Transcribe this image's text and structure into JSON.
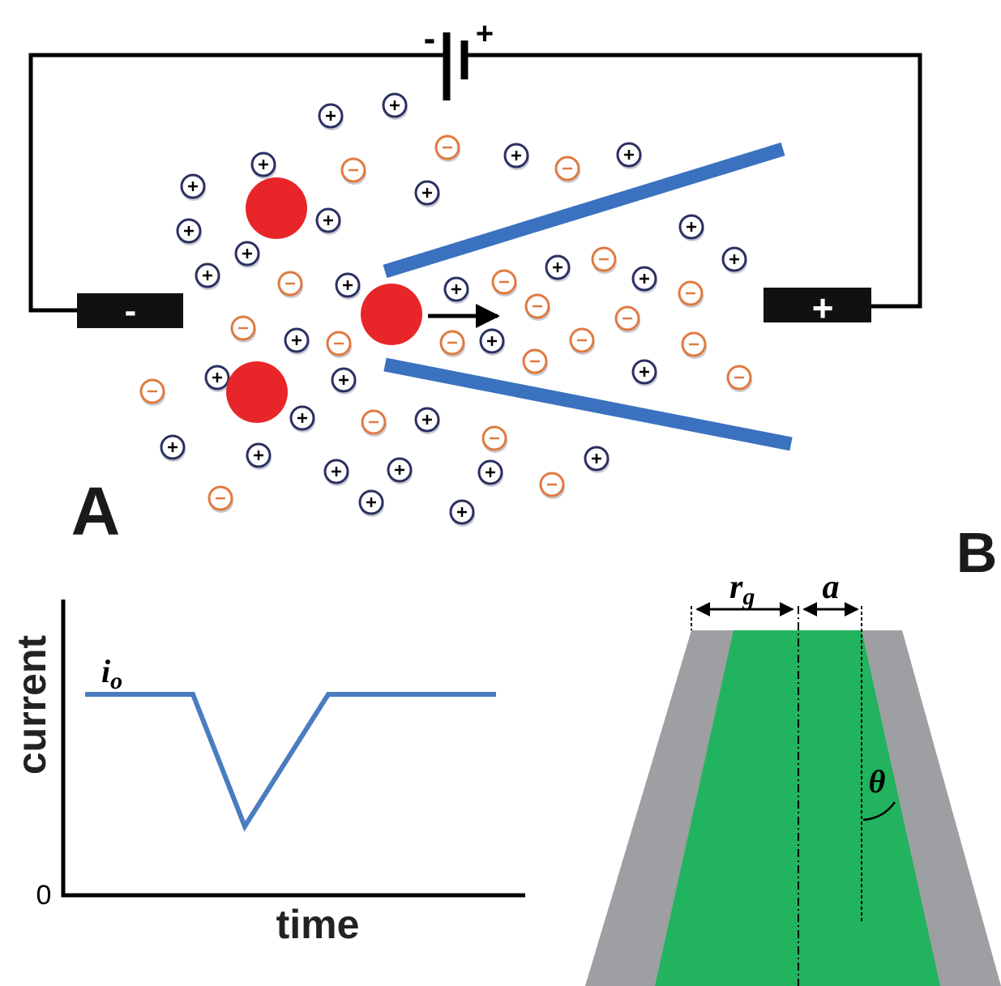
{
  "panel_a": {
    "label": "A",
    "battery": {
      "negative": "-",
      "positive": "+"
    },
    "electrodes": {
      "negative": "-",
      "positive": "+"
    }
  },
  "plot": {
    "y_label": "current",
    "x_label": "time",
    "zero": "0",
    "baseline_label": {
      "symbol": "i",
      "subscript": "o"
    }
  },
  "panel_b": {
    "label": "B",
    "gap_radius": {
      "symbol": "r",
      "subscript": "g"
    },
    "pore_radius": "a",
    "angle": "θ"
  }
}
